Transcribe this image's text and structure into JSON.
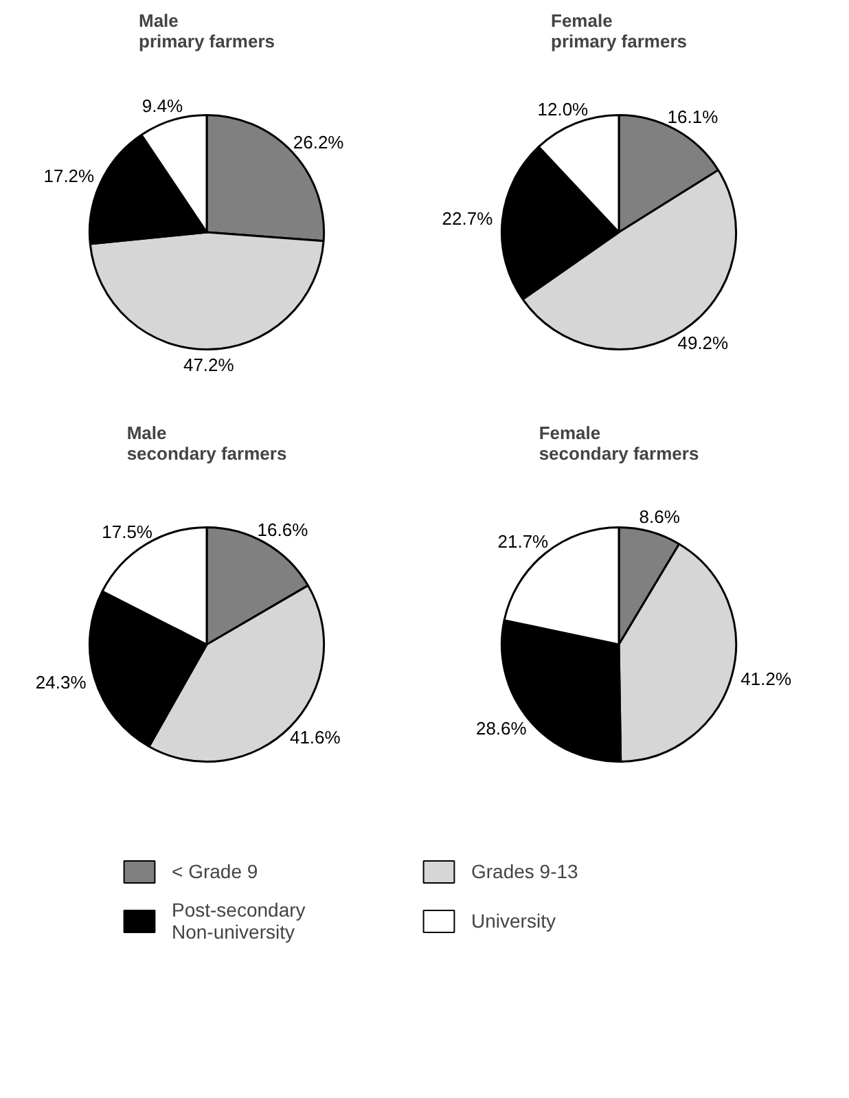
{
  "chart_data": [
    {
      "type": "pie",
      "title": "Male\nprimary farmers",
      "categories": [
        "< Grade 9",
        "Grades 9-13",
        "Post-secondary\nNon-university",
        "University"
      ],
      "values": [
        26.2,
        47.2,
        17.2,
        9.4
      ],
      "colors": [
        "#808080",
        "#d6d6d6",
        "#000000",
        "#ffffff"
      ],
      "value_labels": [
        "26.2%",
        "47.2%",
        "17.2%",
        "9.4%"
      ],
      "legend": "bottom"
    },
    {
      "type": "pie",
      "title": "Female\nprimary farmers",
      "values": [
        16.1,
        49.2,
        22.7,
        12.0
      ],
      "colors": [
        "#808080",
        "#d6d6d6",
        "#000000",
        "#ffffff"
      ],
      "value_labels": [
        "16.1%",
        "49.2%",
        "22.7%",
        "12.0%"
      ]
    },
    {
      "type": "pie",
      "title": "Male\nsecondary farmers",
      "values": [
        16.6,
        41.6,
        24.3,
        17.5
      ],
      "colors": [
        "#808080",
        "#d6d6d6",
        "#000000",
        "#ffffff"
      ],
      "value_labels": [
        "16.6%",
        "41.6%",
        "24.3%",
        "17.5%"
      ]
    },
    {
      "type": "pie",
      "title": "Female\nsecondary farmers",
      "values": [
        8.6,
        41.2,
        28.6,
        21.7
      ],
      "colors": [
        "#808080",
        "#d6d6d6",
        "#000000",
        "#ffffff"
      ],
      "value_labels": [
        "8.6%",
        "41.2%",
        "28.6%",
        "21.7%"
      ]
    }
  ]
}
